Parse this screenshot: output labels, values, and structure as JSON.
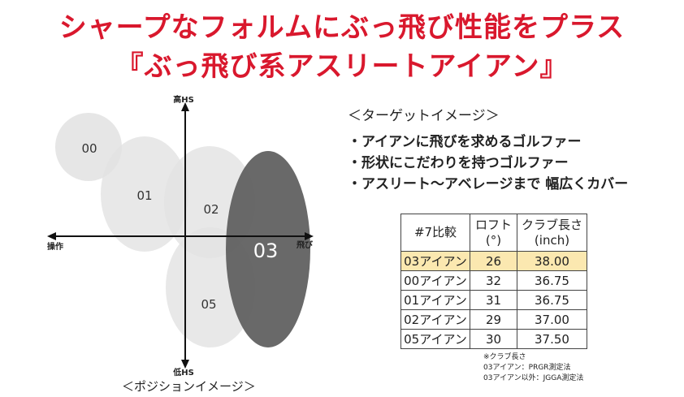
{
  "header": {
    "title_line1": "シャープなフォルムにぶっ飛び性能をプラス",
    "title_line2": "『ぶっ飛び系アスリートアイアン』"
  },
  "position_map": {
    "axis_top": "高HS",
    "axis_bottom": "低HS",
    "axis_left": "操作",
    "axis_right": "飛び",
    "caption": "＜ポジションイメージ＞",
    "items": [
      {
        "label": "00"
      },
      {
        "label": "01"
      },
      {
        "label": "02"
      },
      {
        "label": "05"
      },
      {
        "label": "03"
      }
    ]
  },
  "target": {
    "title": "＜ターゲットイメージ＞",
    "items": [
      "・アイアンに飛びを求めるゴルファー",
      "・形状にこだわりを持つゴルファー",
      "・アスリート～アベレージまで 幅広くカバー"
    ]
  },
  "spec_table": {
    "headers": [
      "#7比較",
      "ロフト\n(°)",
      "クラブ長さ\n(inch)"
    ],
    "rows": [
      {
        "model": "03アイアン",
        "loft": "26",
        "length": "38.00",
        "highlight": true
      },
      {
        "model": "00アイアン",
        "loft": "32",
        "length": "36.75",
        "highlight": false
      },
      {
        "model": "01アイアン",
        "loft": "31",
        "length": "36.75",
        "highlight": false
      },
      {
        "model": "02アイアン",
        "loft": "29",
        "length": "37.00",
        "highlight": false
      },
      {
        "model": "05アイアン",
        "loft": "30",
        "length": "37.50",
        "highlight": false
      }
    ]
  },
  "notes": [
    "※クラブ長さ",
    "03アイアン：PRGR測定法",
    "03アイアン以外：JGGA測定法"
  ],
  "colors": {
    "title_red": "#d9182d",
    "highlight_row": "#fbe8b0",
    "bubble_light": "#e6e6e6",
    "bubble_dark": "#666666"
  }
}
